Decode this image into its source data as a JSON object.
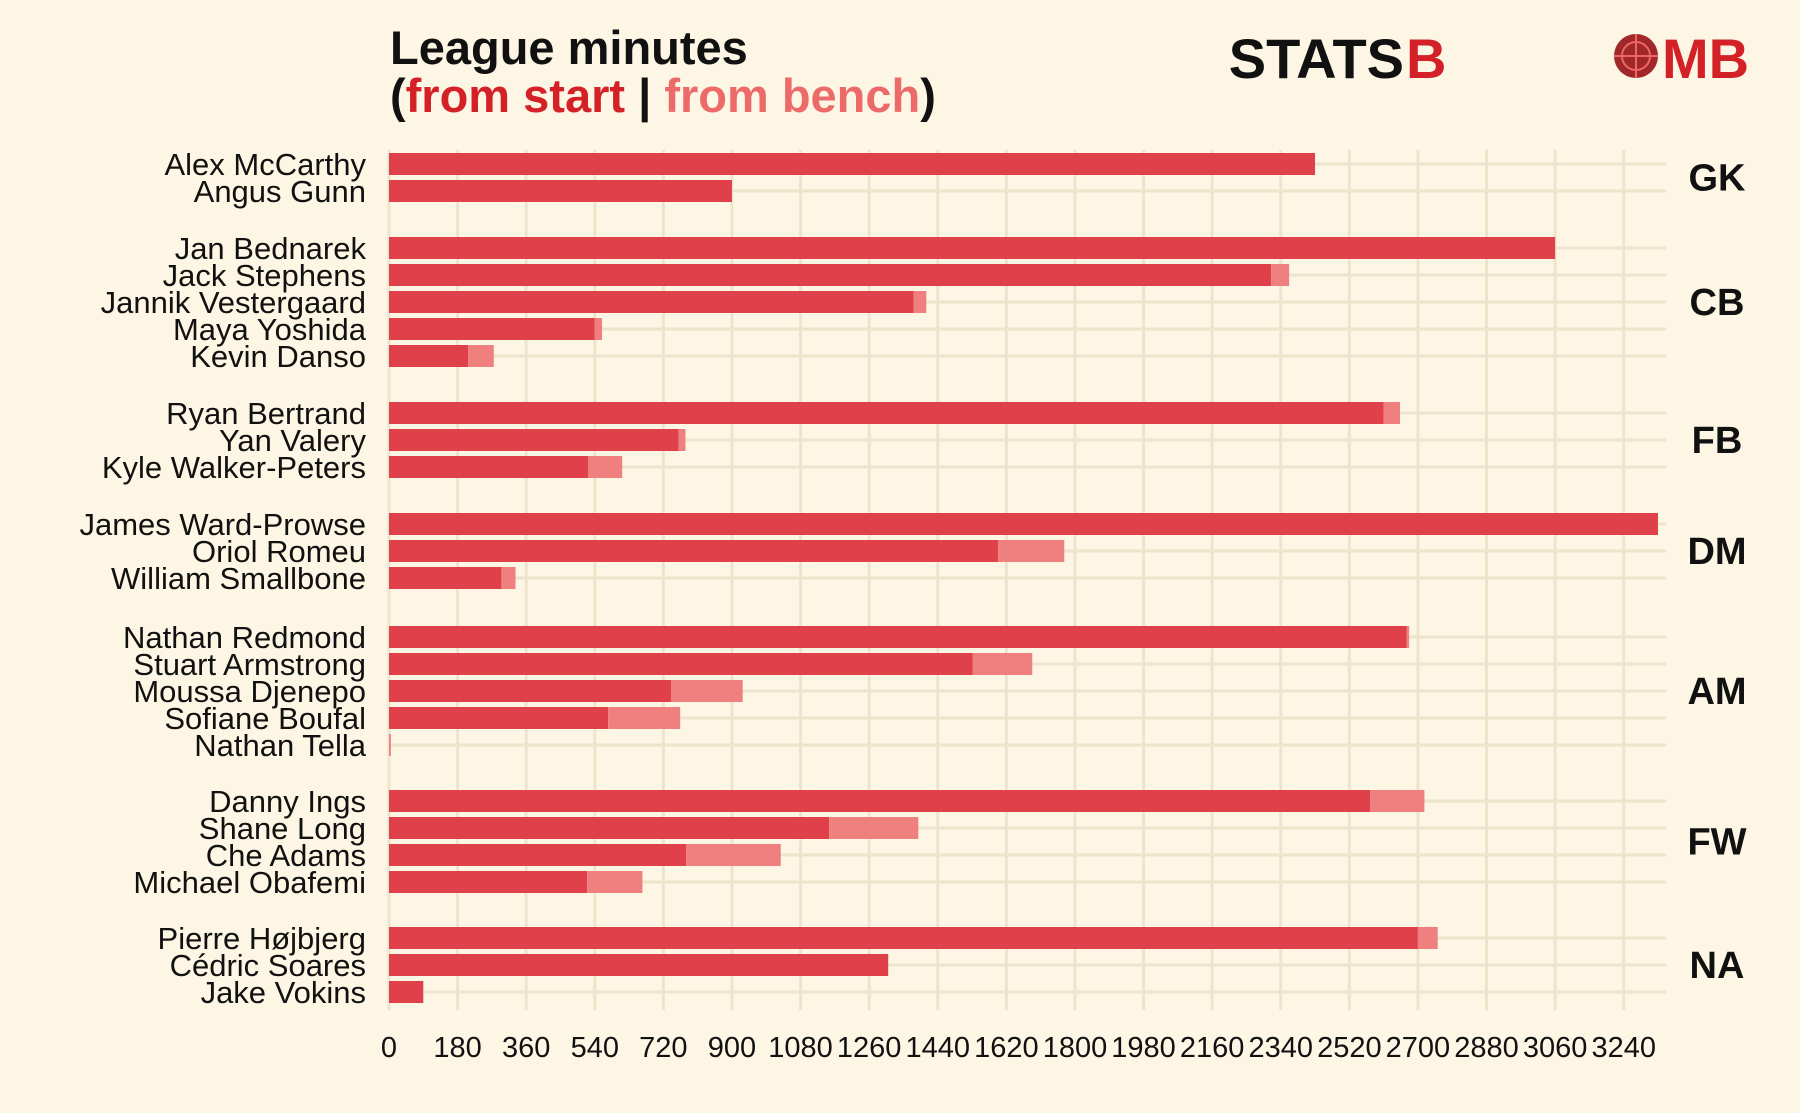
{
  "colors": {
    "background": "#fdf6e4",
    "grid": "#ede4cc",
    "start": "#e0404a",
    "bench": "#f08080",
    "title_start": "#d32127",
    "title_bench": "#ec6a6a",
    "text": "#111111"
  },
  "header": {
    "line1": "League minutes",
    "open_paren": "(",
    "from_start": "from start",
    "separator": " | ",
    "from_bench": "from bench",
    "close_paren": ")"
  },
  "logo": {
    "part1": "STATS",
    "part2": "B",
    "part3": "MB",
    "icon": "bomb-icon"
  },
  "chart_data": {
    "type": "bar",
    "orientation": "horizontal",
    "stacked": true,
    "x_ticks": [
      0,
      180,
      360,
      540,
      720,
      900,
      1080,
      1260,
      1440,
      1620,
      1800,
      1980,
      2160,
      2340,
      2520,
      2700,
      2880,
      3060,
      3240
    ],
    "xlim": [
      0,
      3330
    ],
    "grid": true,
    "legend": "title",
    "series_names": [
      "from start",
      "from bench"
    ],
    "groups": [
      {
        "position": "GK",
        "players": [
          {
            "name": "Alex McCarthy",
            "start": 2430,
            "bench": 0
          },
          {
            "name": "Angus Gunn",
            "start": 900,
            "bench": 0
          }
        ]
      },
      {
        "position": "CB",
        "players": [
          {
            "name": "Jan Bednarek",
            "start": 3060,
            "bench": 0
          },
          {
            "name": "Jack Stephens",
            "start": 2315,
            "bench": 47
          },
          {
            "name": "Jannik Vestergaard",
            "start": 1377,
            "bench": 33
          },
          {
            "name": "Maya Yoshida",
            "start": 540,
            "bench": 19
          },
          {
            "name": "Kevin Danso",
            "start": 208,
            "bench": 67
          }
        ]
      },
      {
        "position": "FB",
        "players": [
          {
            "name": "Ryan Bertrand",
            "start": 2610,
            "bench": 43
          },
          {
            "name": "Yan Valery",
            "start": 760,
            "bench": 18
          },
          {
            "name": "Kyle Walker-Peters",
            "start": 523,
            "bench": 89
          }
        ]
      },
      {
        "position": "DM",
        "players": [
          {
            "name": "James Ward-Prowse",
            "start": 3330,
            "bench": 0
          },
          {
            "name": "Oriol Romeu",
            "start": 1598,
            "bench": 174
          },
          {
            "name": "William Smallbone",
            "start": 295,
            "bench": 37
          }
        ]
      },
      {
        "position": "AM",
        "players": [
          {
            "name": "Nathan Redmond",
            "start": 2670,
            "bench": 7
          },
          {
            "name": "Stuart Armstrong",
            "start": 1532,
            "bench": 156
          },
          {
            "name": "Moussa Djenepo",
            "start": 740,
            "bench": 188
          },
          {
            "name": "Sofiane Boufal",
            "start": 575,
            "bench": 189
          },
          {
            "name": "Nathan Tella",
            "start": 0,
            "bench": 5
          }
        ]
      },
      {
        "position": "FW",
        "players": [
          {
            "name": "Danny Ings",
            "start": 2575,
            "bench": 142
          },
          {
            "name": "Shane Long",
            "start": 1155,
            "bench": 234
          },
          {
            "name": "Che Adams",
            "start": 780,
            "bench": 248
          },
          {
            "name": "Michael Obafemi",
            "start": 520,
            "bench": 145
          }
        ]
      },
      {
        "position": "NA",
        "players": [
          {
            "name": "Pierre Højbjerg",
            "start": 2700,
            "bench": 52
          },
          {
            "name": "Cédric Soares",
            "start": 1310,
            "bench": 0
          },
          {
            "name": "Jake Vokins",
            "start": 90,
            "bench": 0
          }
        ]
      }
    ]
  }
}
